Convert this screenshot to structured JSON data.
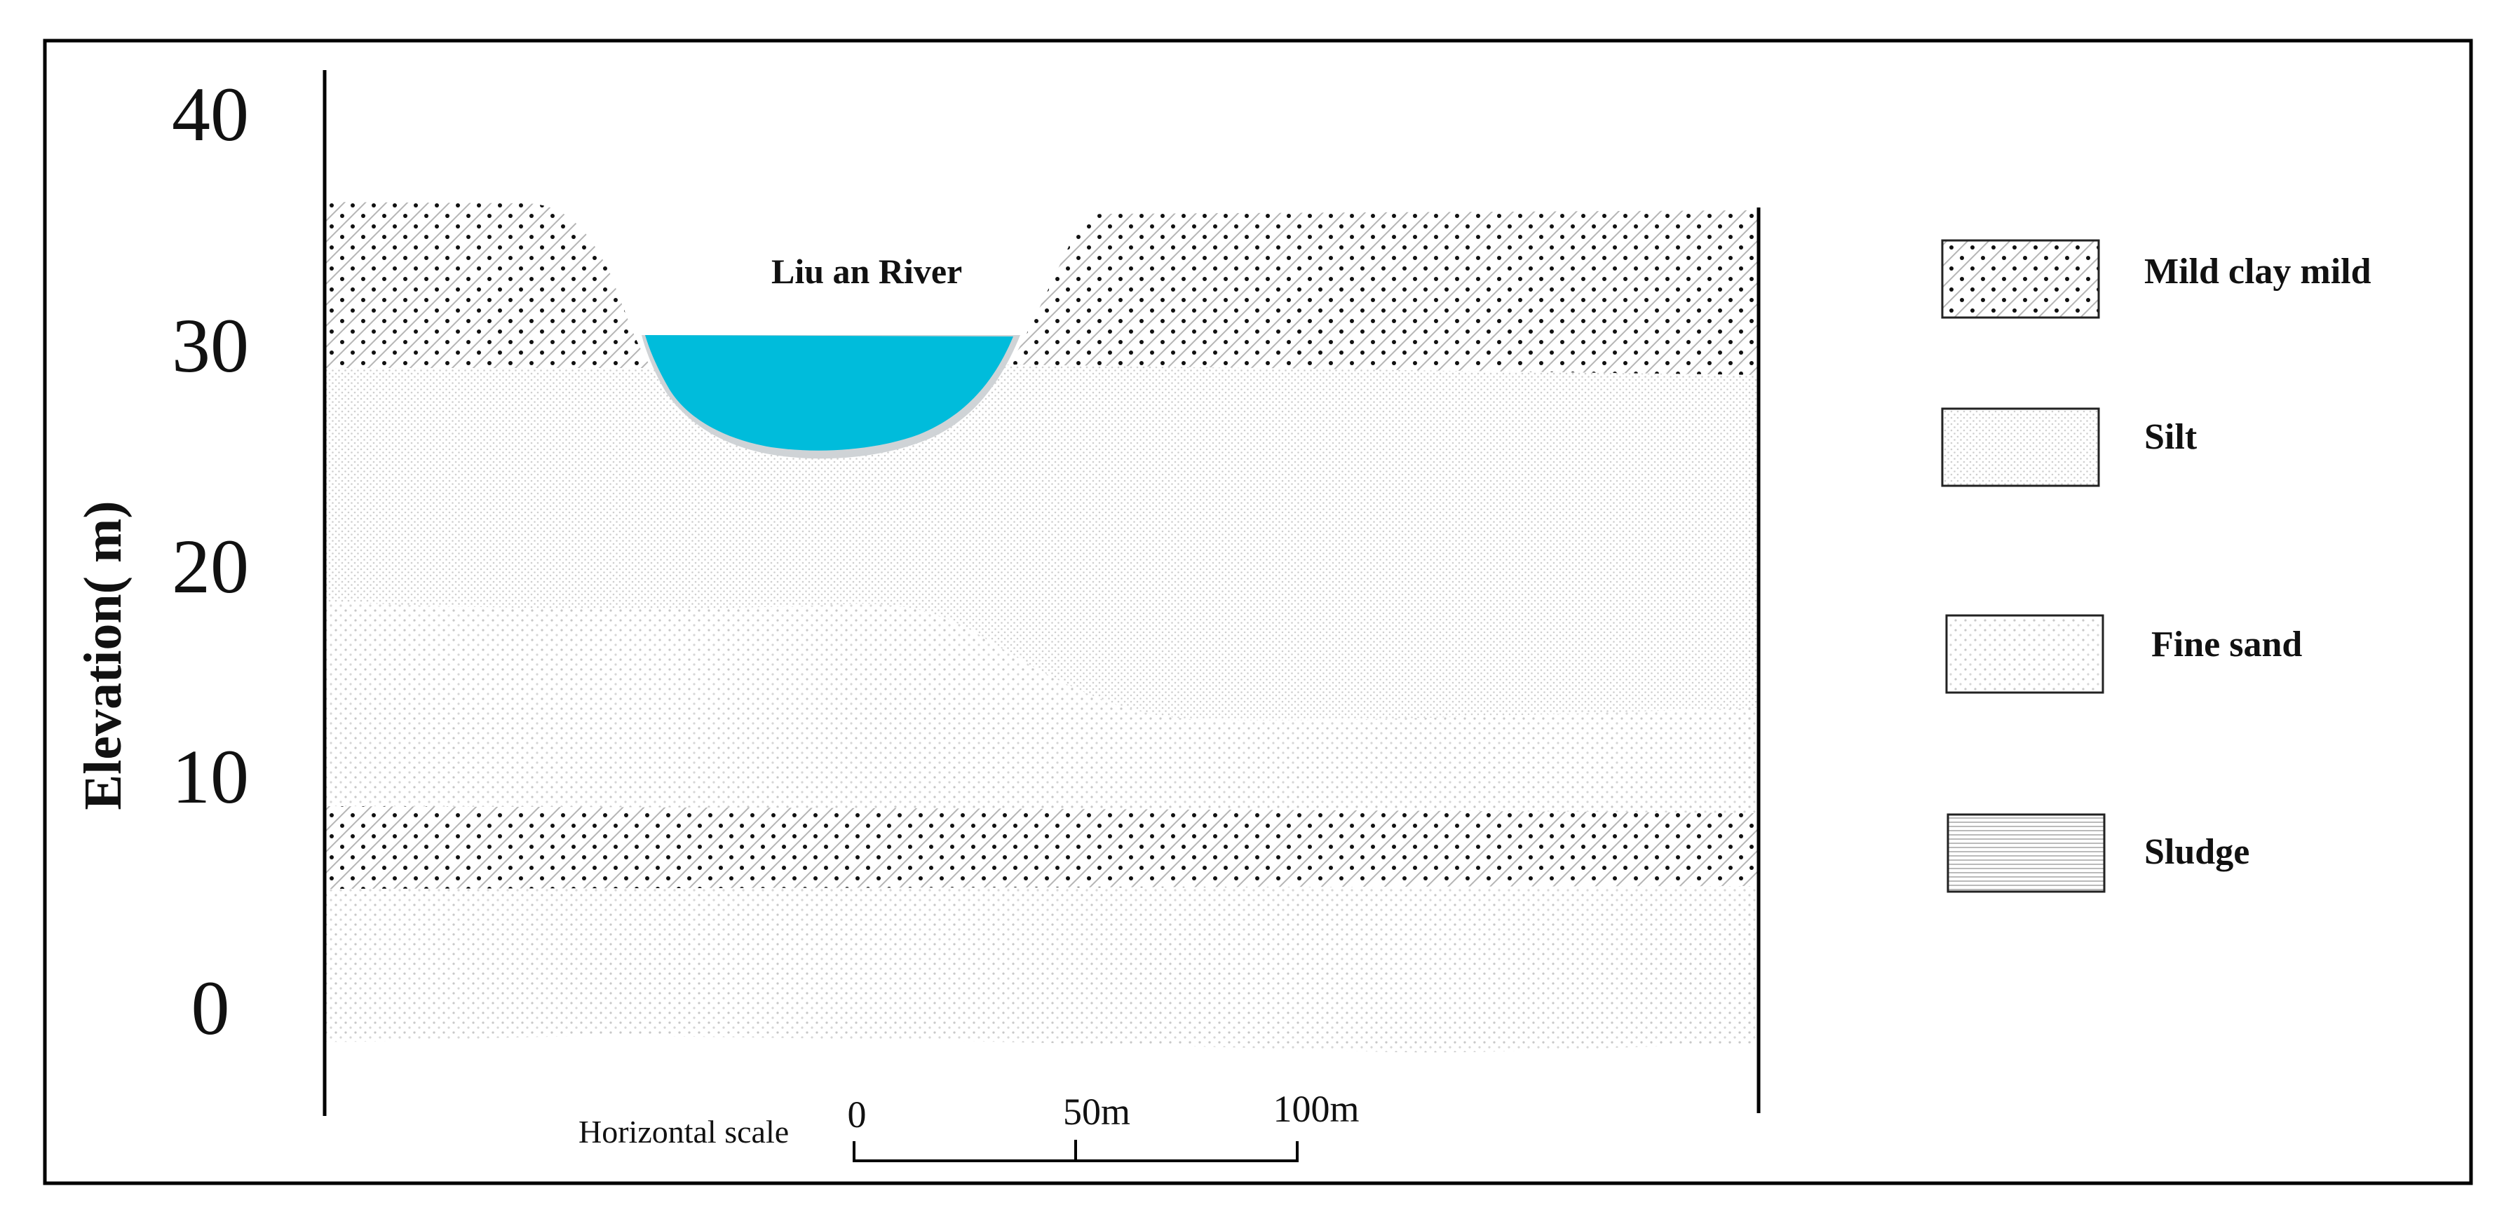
{
  "y_axis": {
    "label": "Elevation( m)",
    "ticks": [
      "40",
      "30",
      "20",
      "10",
      "0"
    ]
  },
  "river_label": "Liu an River",
  "legend": [
    {
      "key": "clay",
      "label": "Mild clay mild"
    },
    {
      "key": "silt",
      "label": "Silt"
    },
    {
      "key": "fine_sand",
      "label": "Fine sand"
    },
    {
      "key": "sludge",
      "label": "Sludge"
    }
  ],
  "scale_bar": {
    "label": "Horizontal scale",
    "ticks": [
      "0",
      "50m",
      "100m"
    ]
  },
  "colors": {
    "water": "#00BCDB",
    "frame": "#000000"
  }
}
